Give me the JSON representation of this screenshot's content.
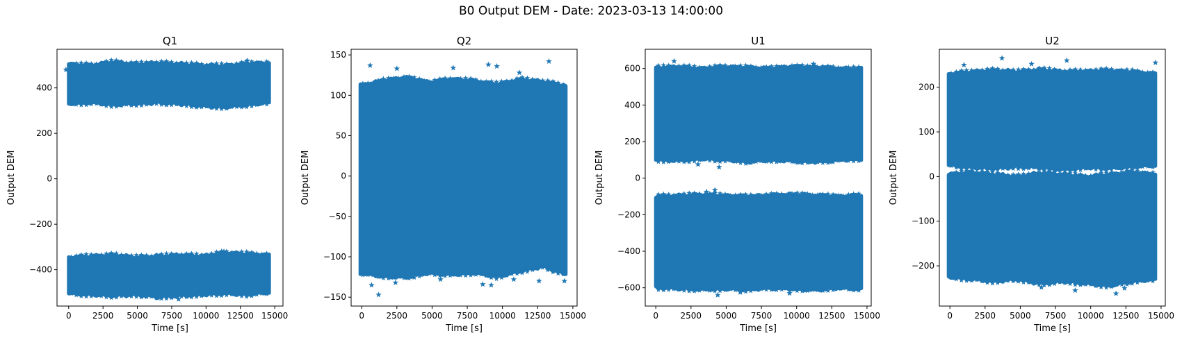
{
  "figure_title": "B0 Output DEM - Date: 2023-03-13 14:00:00",
  "colors": {
    "series": "#1f77b4",
    "axis": "#000000",
    "background": "#ffffff"
  },
  "marker": "star",
  "chart_data": [
    {
      "type": "scatter",
      "title": "Q1",
      "xlabel": "Time [s]",
      "ylabel": "Output DEM",
      "xlim": [
        -850,
        15600
      ],
      "ylim": [
        -560,
        570
      ],
      "xticks": [
        0,
        2500,
        5000,
        7500,
        10000,
        12500,
        15000
      ],
      "xtick_labels": [
        "0",
        "2500",
        "5000",
        "7500",
        "10000",
        "12500",
        "15000"
      ],
      "yticks": [
        -400,
        -200,
        0,
        200,
        400
      ],
      "ytick_labels": [
        "−400",
        "−200",
        "0",
        "200",
        "400"
      ],
      "data_x_range": [
        0,
        14600
      ],
      "bands": [
        {
          "top": [
            505,
            500,
            515,
            505,
            510,
            505,
            500,
            498,
            508,
            510
          ],
          "bottom": [
            330,
            335,
            325,
            330,
            335,
            330,
            320,
            315,
            325,
            335
          ]
        },
        {
          "top": [
            -345,
            -340,
            -335,
            -345,
            -340,
            -335,
            -340,
            -325,
            -330,
            -335
          ],
          "bottom": [
            -505,
            -510,
            -515,
            -510,
            -520,
            -515,
            -510,
            -505,
            -510,
            -500
          ]
        }
      ],
      "outliers": [
        [
          -200,
          480
        ],
        [
          13000,
          520
        ],
        [
          11500,
          315
        ],
        [
          8000,
          -530
        ],
        [
          6500,
          -525
        ],
        [
          11300,
          -320
        ]
      ]
    },
    {
      "type": "scatter",
      "title": "Q2",
      "xlabel": "Time [s]",
      "ylabel": "Output DEM",
      "xlim": [
        -750,
        15300
      ],
      "ylim": [
        -161,
        157
      ],
      "xticks": [
        0,
        2500,
        5000,
        7500,
        10000,
        12500,
        15000
      ],
      "xtick_labels": [
        "0",
        "2500",
        "5000",
        "7500",
        "10000",
        "12500",
        "15000"
      ],
      "yticks": [
        -150,
        -100,
        -50,
        0,
        50,
        100,
        150
      ],
      "ytick_labels": [
        "−150",
        "−100",
        "−50",
        "0",
        "50",
        "100",
        "150"
      ],
      "data_x_range": [
        -100,
        14500
      ],
      "bands": [
        {
          "top": [
            112,
            118,
            122,
            116,
            120,
            118,
            114,
            120,
            117,
            112
          ],
          "bottom": [
            -120,
            -124,
            -125,
            -120,
            -122,
            -120,
            -125,
            -118,
            -112,
            -122
          ]
        }
      ],
      "outliers": [
        [
          600,
          137
        ],
        [
          2500,
          133
        ],
        [
          6500,
          134
        ],
        [
          9000,
          138
        ],
        [
          9600,
          136
        ],
        [
          11200,
          128
        ],
        [
          13300,
          142
        ],
        [
          1200,
          -147
        ],
        [
          2400,
          -132
        ],
        [
          5600,
          -128
        ],
        [
          8600,
          -134
        ],
        [
          9200,
          -135
        ],
        [
          10800,
          -128
        ],
        [
          12600,
          -130
        ],
        [
          14400,
          -130
        ],
        [
          700,
          -135
        ]
      ]
    },
    {
      "type": "scatter",
      "title": "U1",
      "xlabel": "Time [s]",
      "ylabel": "Output DEM",
      "xlim": [
        -750,
        15300
      ],
      "ylim": [
        -700,
        705
      ],
      "xticks": [
        0,
        2500,
        5000,
        7500,
        10000,
        12500,
        15000
      ],
      "xtick_labels": [
        "0",
        "2500",
        "5000",
        "7500",
        "10000",
        "12500",
        "15000"
      ],
      "yticks": [
        -600,
        -400,
        -200,
        0,
        200,
        400,
        600
      ],
      "ytick_labels": [
        "−600",
        "−400",
        "−200",
        "0",
        "200",
        "400",
        "600"
      ],
      "data_x_range": [
        0,
        14600
      ],
      "bands": [
        {
          "top": [
            605,
            610,
            600,
            610,
            605,
            600,
            610,
            605,
            600,
            598
          ],
          "bottom": [
            100,
            95,
            105,
            100,
            90,
            100,
            95,
            90,
            100,
            105
          ]
        },
        {
          "top": [
            -100,
            -95,
            -90,
            -95,
            -100,
            -95,
            -90,
            -95,
            -100,
            -95
          ],
          "bottom": [
            -600,
            -605,
            -610,
            -605,
            -610,
            -600,
            -605,
            -610,
            -600,
            -605
          ]
        }
      ],
      "outliers": [
        [
          1300,
          640
        ],
        [
          11200,
          625
        ],
        [
          3000,
          75
        ],
        [
          4500,
          60
        ],
        [
          4200,
          -65
        ],
        [
          3600,
          -75
        ],
        [
          4400,
          -640
        ],
        [
          9500,
          -630
        ],
        [
          6000,
          -625
        ]
      ]
    },
    {
      "type": "scatter",
      "title": "U2",
      "xlabel": "Time [s]",
      "ylabel": "Output DEM",
      "xlim": [
        -750,
        15300
      ],
      "ylim": [
        -290,
        285
      ],
      "xticks": [
        0,
        2500,
        5000,
        7500,
        10000,
        12500,
        15000
      ],
      "xtick_labels": [
        "0",
        "2500",
        "5000",
        "7500",
        "10000",
        "12500",
        "15000"
      ],
      "yticks": [
        -200,
        -100,
        0,
        100,
        200
      ],
      "ytick_labels": [
        "−200",
        "−100",
        "0",
        "100",
        "200"
      ],
      "data_x_range": [
        -100,
        14600
      ],
      "bands": [
        {
          "top": [
            230,
            235,
            238,
            235,
            240,
            235,
            236,
            238,
            235,
            230
          ],
          "bottom": [
            25,
            20,
            18,
            22,
            20,
            15,
            20,
            18,
            22,
            25
          ]
        },
        {
          "top": [
            5,
            10,
            5,
            0,
            8,
            5,
            0,
            5,
            10,
            5
          ],
          "bottom": [
            -225,
            -230,
            -235,
            -230,
            -240,
            -235,
            -240,
            -245,
            -235,
            -230
          ]
        }
      ],
      "outliers": [
        [
          3700,
          265
        ],
        [
          8300,
          260
        ],
        [
          14600,
          255
        ],
        [
          1000,
          250
        ],
        [
          5800,
          252
        ],
        [
          6500,
          -248
        ],
        [
          8900,
          -255
        ],
        [
          11800,
          -262
        ],
        [
          12400,
          -250
        ]
      ]
    }
  ]
}
